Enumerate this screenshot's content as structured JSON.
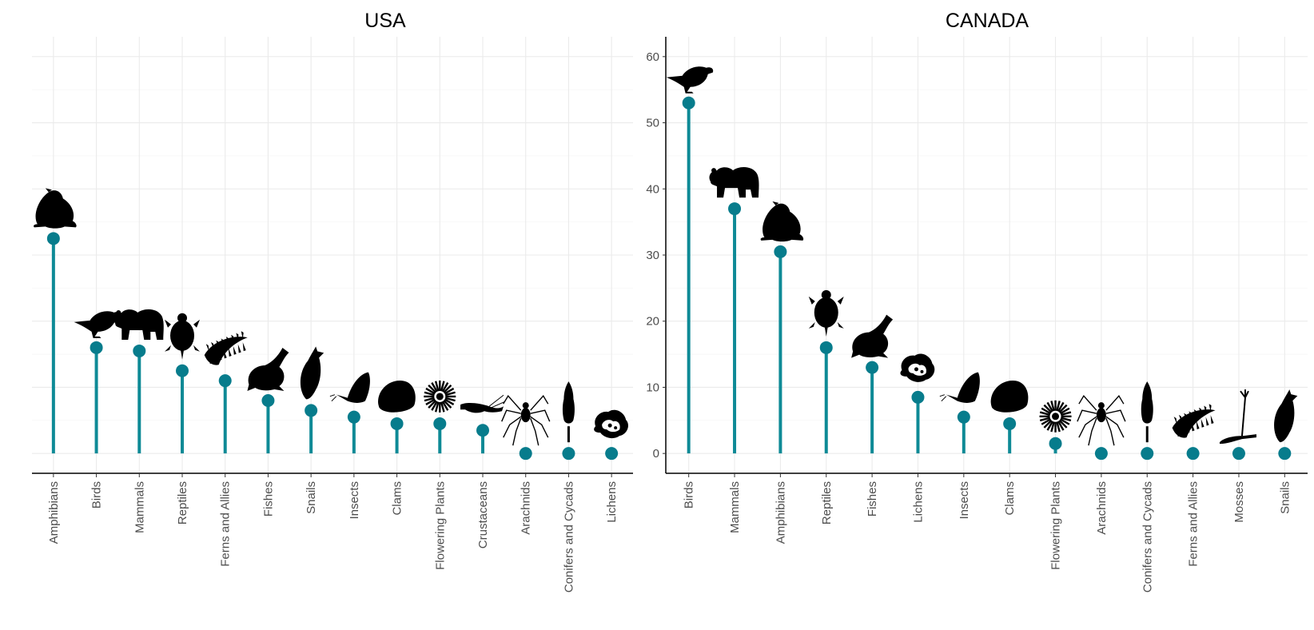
{
  "chart_data": [
    {
      "type": "lollipop",
      "title": "USA",
      "xlabel": "",
      "ylabel": "",
      "ylim": [
        -3,
        63
      ],
      "yticks_visible": false,
      "categories": [
        "Amphibians",
        "Birds",
        "Mammals",
        "Reptiles",
        "Ferns and Allies",
        "Fishes",
        "Snails",
        "Insects",
        "Clams",
        "Flowering Plants",
        "Crustaceans",
        "Arachnids",
        "Conifers and Cycads",
        "Lichens"
      ],
      "values": [
        32.5,
        16,
        15.5,
        12.5,
        11,
        8,
        6.5,
        5.5,
        4.5,
        4.5,
        3.5,
        0,
        0,
        0
      ],
      "icons": [
        "frog-icon",
        "bird-icon",
        "bear-icon",
        "turtle-icon",
        "fern-icon",
        "fish-icon",
        "snail-icon",
        "butterfly-icon",
        "clam-icon",
        "flower-icon",
        "shrimp-icon",
        "spider-icon",
        "conifer-icon",
        "lichen-icon"
      ]
    },
    {
      "type": "lollipop",
      "title": "CANADA",
      "xlabel": "",
      "ylabel": "",
      "ylim": [
        -3,
        63
      ],
      "yticks": [
        0,
        10,
        20,
        30,
        40,
        50,
        60
      ],
      "yticks_visible": true,
      "categories": [
        "Birds",
        "Mammals",
        "Amphibians",
        "Reptiles",
        "Fishes",
        "Lichens",
        "Insects",
        "Clams",
        "Flowering Plants",
        "Arachnids",
        "Conifers and Cycads",
        "Ferns and Allies",
        "Mosses",
        "Snails"
      ],
      "values": [
        53,
        37,
        30.5,
        16,
        13,
        8.5,
        5.5,
        4.5,
        1.5,
        0,
        0,
        0,
        0,
        0
      ],
      "icons": [
        "bird-icon",
        "bear-icon",
        "frog-icon",
        "turtle-icon",
        "fish-icon",
        "lichen-icon",
        "butterfly-icon",
        "clam-icon",
        "flower-icon",
        "spider-icon",
        "conifer-icon",
        "fern-icon",
        "moss-icon",
        "snail-icon"
      ]
    }
  ],
  "style": {
    "stem_color": "#0e8a96",
    "point_color": "#077c8c",
    "icon_color": "#000000"
  }
}
